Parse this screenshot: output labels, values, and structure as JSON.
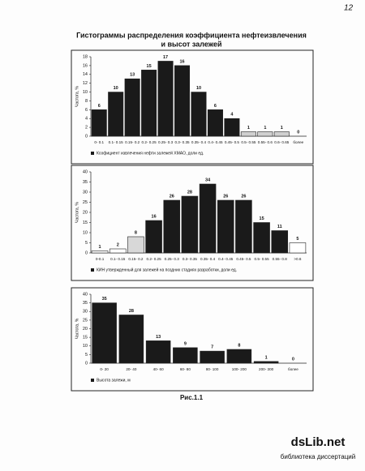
{
  "page_number": "12",
  "title": [
    "Гистограммы распределения коэффициента нефтеизвлечения",
    "и высот залежей"
  ],
  "caption": "Рис.1.1",
  "watermark": {
    "logo": "dsLib.net",
    "text": "библиотека диссертаций"
  },
  "chart_data": [
    {
      "type": "bar",
      "y_label": "Частота, %",
      "legend": "Коэфициент извлечения нефти залежей ХМАО, доли ед.",
      "categories": [
        "0- 0.1",
        "0.1- 0.15",
        "0.15- 0.2",
        "0.2- 0.25",
        "0.25- 0.3",
        "0.3- 0.35",
        "0.35- 0.4",
        "0.4- 0.45",
        "0.45- 0.5",
        "0.5- 0.55",
        "0.55- 0.6",
        "0.6- 0.65",
        "более"
      ],
      "values": [
        6,
        10,
        13,
        15,
        17,
        16,
        10,
        6,
        4,
        1,
        1,
        1,
        0
      ],
      "colors": [
        "#1a1a1a",
        "#1a1a1a",
        "#1a1a1a",
        "#1a1a1a",
        "#1a1a1a",
        "#1a1a1a",
        "#1a1a1a",
        "#1a1a1a",
        "#1a1a1a",
        "#cfcfcf",
        "#cfcfcf",
        "#cfcfcf",
        "#cfcfcf"
      ],
      "ylim": [
        0,
        18
      ],
      "yticks": [
        0,
        2,
        4,
        6,
        8,
        10,
        12,
        14,
        16,
        18
      ]
    },
    {
      "type": "bar",
      "y_label": "Частота, %",
      "legend": "КИН утвержденный для залежей на поздних стадиях разработки, доли ед.",
      "categories": [
        "0-0.1",
        "0.1- 0.15",
        "0.15- 0.2",
        "0.2- 0.25",
        "0.25- 0.3",
        "0.3- 0.35",
        "0.35- 0.4",
        "0.4- 0.45",
        "0.45- 0.5",
        "0.5- 0.55",
        "0.55- 0.8",
        ">0.6"
      ],
      "values": [
        1,
        2,
        8,
        16,
        26,
        28,
        34,
        26,
        26,
        15,
        11,
        5
      ],
      "colors": [
        "#ffffff",
        "#ffffff",
        "#d8d8d8",
        "#1a1a1a",
        "#1a1a1a",
        "#1a1a1a",
        "#1a1a1a",
        "#1a1a1a",
        "#1a1a1a",
        "#1a1a1a",
        "#1a1a1a",
        "#ffffff"
      ],
      "ylim": [
        0,
        40
      ],
      "yticks": [
        0,
        5,
        10,
        15,
        20,
        25,
        30,
        35,
        40
      ]
    },
    {
      "type": "bar",
      "y_label": "Частота, %",
      "legend": "Высота залежи, м",
      "categories": [
        "0- 20",
        "20- 40",
        "40- 60",
        "60- 80",
        "80- 100",
        "100- 200",
        "200- 300",
        "более"
      ],
      "values": [
        35,
        28,
        13,
        9,
        7,
        8,
        1,
        0
      ],
      "colors": [
        "#1a1a1a",
        "#1a1a1a",
        "#1a1a1a",
        "#1a1a1a",
        "#1a1a1a",
        "#1a1a1a",
        "#1a1a1a",
        "#1a1a1a"
      ],
      "ylim": [
        0,
        40
      ],
      "yticks": [
        0,
        5,
        10,
        15,
        20,
        25,
        30,
        35,
        40
      ]
    }
  ]
}
